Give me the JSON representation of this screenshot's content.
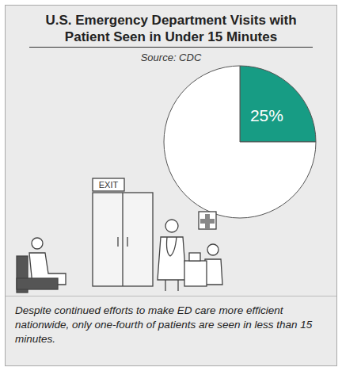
{
  "chart_data": {
    "type": "pie",
    "title": "U.S. Emergency Department Visits with Patient Seen in Under 15 Minutes",
    "subtitle": "Source: CDC",
    "values": [
      25,
      75
    ],
    "value_labels": [
      "25%",
      null
    ],
    "data_labels": true,
    "colors": [
      "#179c84",
      "#ffffff"
    ],
    "caption": "Despite continued efforts to make ED care more efficient nationwide, only one-fourth of patients are seen in less than 15 minutes.",
    "annotations": [
      "EXIT"
    ]
  }
}
